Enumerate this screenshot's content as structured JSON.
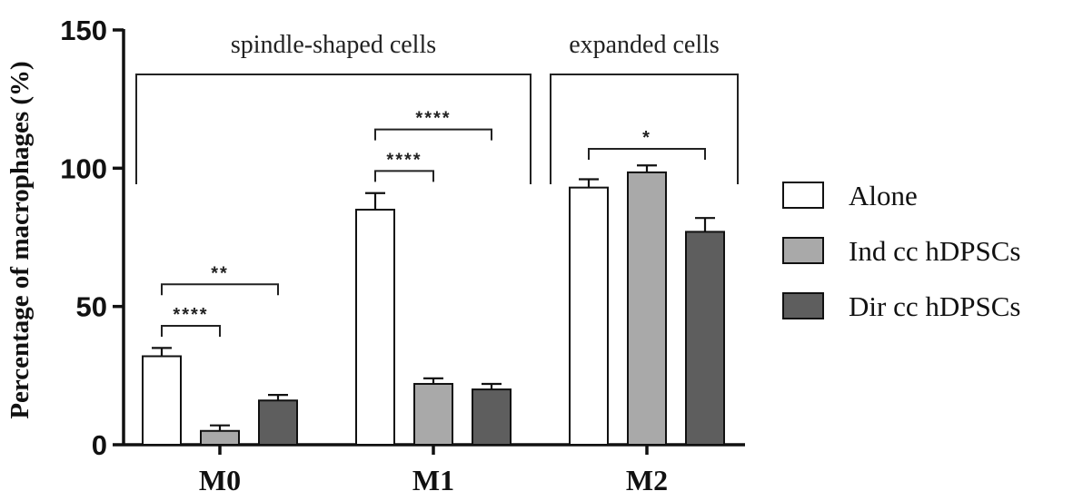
{
  "chart_data": {
    "type": "bar",
    "ylabel": "Percentage of macrophages (%)",
    "ylim": [
      0,
      150
    ],
    "yticks": [
      0,
      50,
      100,
      150
    ],
    "categories": [
      "M0",
      "M1",
      "M2"
    ],
    "series": [
      {
        "name": "Alone",
        "color": "#ffffff",
        "values": [
          32,
          85,
          93
        ],
        "errors": [
          3,
          6,
          3
        ]
      },
      {
        "name": "Ind cc hDPSCs",
        "color": "#a9a9a9",
        "values": [
          5,
          22,
          98.5
        ],
        "errors": [
          2,
          2,
          2.5
        ]
      },
      {
        "name": "Dir cc hDPSCs",
        "color": "#5e5e5e",
        "values": [
          16,
          20,
          77
        ],
        "errors": [
          2,
          2,
          5
        ]
      }
    ],
    "group_annotations": [
      {
        "label": "spindle-shaped cells",
        "covers": [
          "M0",
          "M1"
        ]
      },
      {
        "label": "expanded cells",
        "covers": [
          "M2"
        ]
      }
    ],
    "significance": [
      {
        "category": "M0",
        "from_series": 0,
        "to_series": 1,
        "label": "****",
        "at": 43
      },
      {
        "category": "M0",
        "from_series": 0,
        "to_series": 2,
        "label": "**",
        "at": 58
      },
      {
        "category": "M1",
        "from_series": 0,
        "to_series": 1,
        "label": "****",
        "at": 99
      },
      {
        "category": "M1",
        "from_series": 0,
        "to_series": 2,
        "label": "****",
        "at": 114
      },
      {
        "category": "M2",
        "from_series": 0,
        "to_series": 2,
        "label": "*",
        "at": 107
      }
    ],
    "legend_position": "right"
  }
}
